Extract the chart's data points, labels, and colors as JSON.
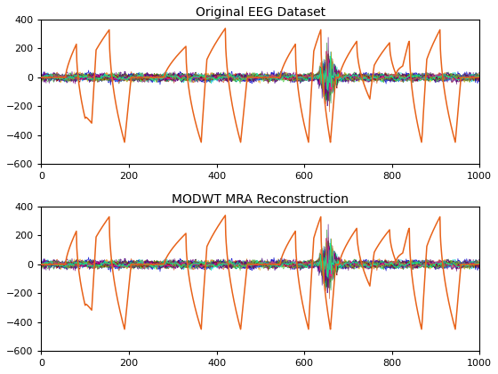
{
  "title1": "Original EEG Dataset",
  "title2": "MODWT MRA Reconstruction",
  "xlim": [
    0,
    1000
  ],
  "ylim": [
    -600,
    400
  ],
  "yticks": [
    -600,
    -400,
    -200,
    0,
    200,
    400
  ],
  "xticks": [
    0,
    200,
    400,
    600,
    800,
    1000
  ],
  "n_points": 1001,
  "orange_color": "#E8631A",
  "noise_amplitude": 20,
  "figsize": [
    5.6,
    4.2
  ],
  "dpi": 100,
  "spikes": [
    {
      "rise_start": 55,
      "peak": 80,
      "trough": 115,
      "end": 125,
      "peak_val": 230,
      "trough_val": -450
    },
    {
      "rise_start": 100,
      "peak": 155,
      "trough": 190,
      "end": 205,
      "peak_val": 330,
      "trough_val": -450
    },
    {
      "rise_start": 280,
      "peak": 330,
      "trough": 365,
      "end": 378,
      "peak_val": 215,
      "trough_val": -450
    },
    {
      "rise_start": 365,
      "peak": 420,
      "trough": 455,
      "end": 470,
      "peak_val": 340,
      "trough_val": -450
    },
    {
      "rise_start": 545,
      "peak": 580,
      "trough": 610,
      "end": 622,
      "peak_val": 230,
      "trough_val": -450
    },
    {
      "rise_start": 610,
      "peak": 638,
      "trough": 660,
      "end": 672,
      "peak_val": 330,
      "trough_val": -450
    },
    {
      "rise_start": 680,
      "peak": 720,
      "trough": 750,
      "end": 760,
      "peak_val": 250,
      "trough_val": -150
    },
    {
      "rise_start": 750,
      "peak": 795,
      "trough": 825,
      "end": 838,
      "peak_val": 240,
      "trough_val": -75
    },
    {
      "rise_start": 810,
      "peak": 840,
      "trough": 868,
      "end": 880,
      "peak_val": 250,
      "trough_val": -450
    },
    {
      "rise_start": 870,
      "peak": 910,
      "trough": 945,
      "end": 958,
      "peak_val": 330,
      "trough_val": -450
    }
  ],
  "eeg_colors": [
    "#0072BD",
    "#4DBEEE",
    "#00CED1",
    "#20B2AA",
    "#32CD32",
    "#9ACD32",
    "#D95319",
    "#A2142F",
    "#EDB120",
    "#7E2F8E",
    "#0000CD",
    "#1E90FF",
    "#008B8B",
    "#228B22",
    "#6B8E23",
    "#B8860B",
    "#8B0000",
    "#800080",
    "#4B0082",
    "#FF1493",
    "#77AC30",
    "#00FA9A"
  ]
}
